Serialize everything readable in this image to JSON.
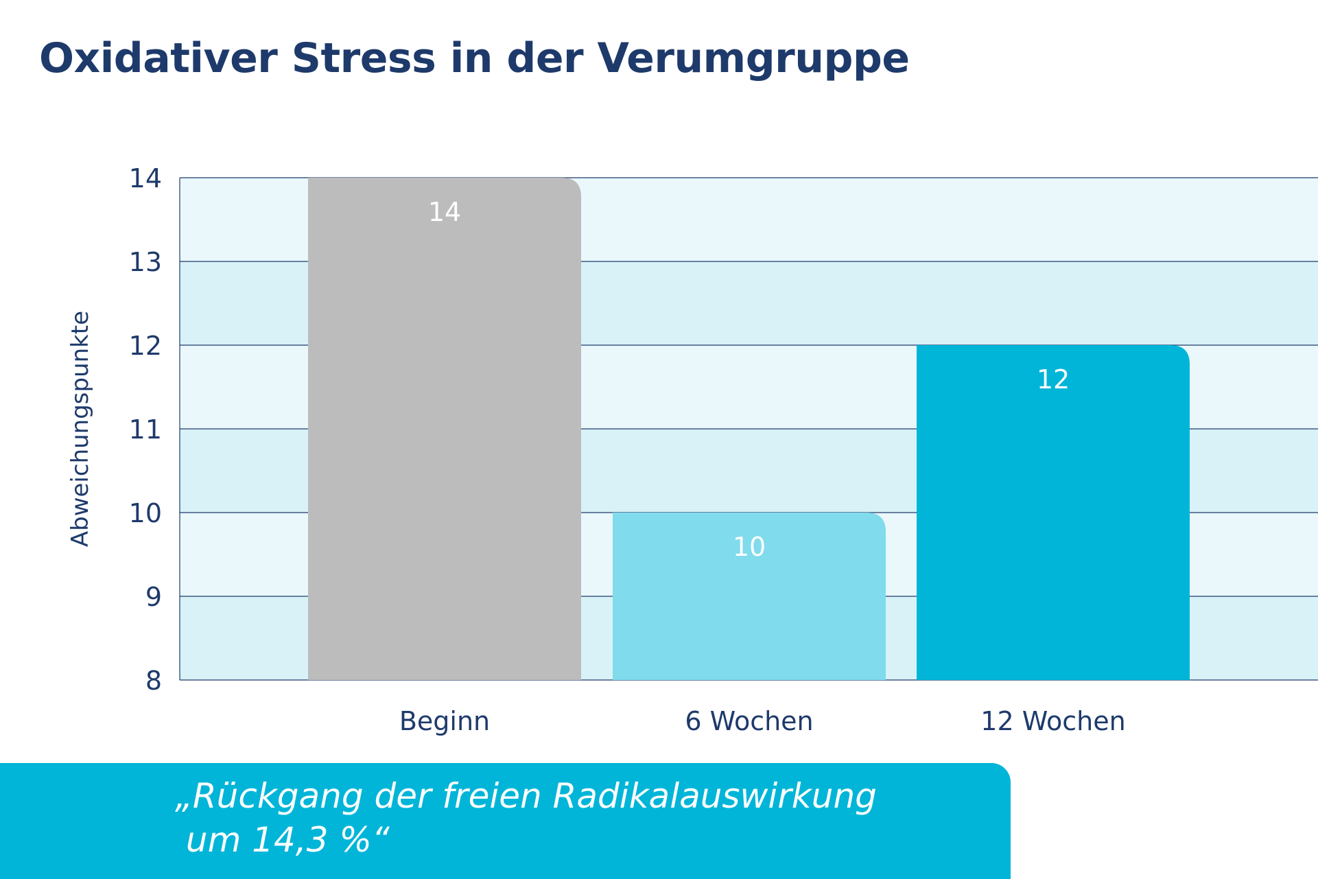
{
  "chart_data": {
    "type": "bar",
    "title": "Oxidativer Stress in der Verumgruppe",
    "xlabel": "",
    "ylabel": "Abweichungspunkte",
    "categories": [
      "Beginn",
      "6 Wochen",
      "12 Wochen"
    ],
    "values": [
      14,
      10,
      12
    ],
    "value_labels": [
      "14",
      "10",
      "12"
    ],
    "bar_colors": [
      "#bcbcbc",
      "#80dbed",
      "#00b5d8"
    ],
    "ylim": [
      8,
      14
    ],
    "yticks": [
      8,
      9,
      10,
      11,
      12,
      13,
      14
    ],
    "grid": true,
    "legend": "none"
  },
  "colors": {
    "title": "#1e3a6b",
    "axis_text": "#1e3a6b",
    "band_light": "#eaf8fb",
    "band_dark": "#d8f2f7",
    "grid_line": "#1e3a6b",
    "quote_background": "#00b5d8",
    "quote_text": "#ffffff",
    "value_label": "#ffffff"
  },
  "quote": {
    "text": "„Rückgang der freien Radikalauswirkung\n um 14,3 %“"
  }
}
